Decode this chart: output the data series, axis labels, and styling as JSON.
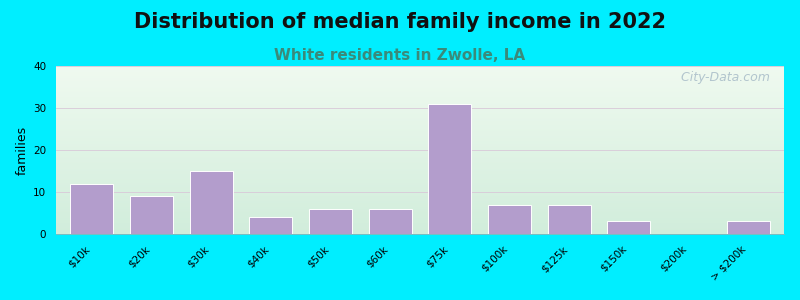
{
  "title": "Distribution of median family income in 2022",
  "subtitle": "White residents in Zwolle, LA",
  "ylabel": "families",
  "categories": [
    "$10k",
    "$20k",
    "$30k",
    "$40k",
    "$50k",
    "$60k",
    "$75k",
    "$100k",
    "$125k",
    "$150k",
    "$200k",
    "> $200k"
  ],
  "values": [
    12,
    9,
    15,
    4,
    6,
    6,
    31,
    7,
    7,
    3,
    0,
    3
  ],
  "bar_color": "#b39dcc",
  "bar_edgecolor": "#ffffff",
  "ylim": [
    0,
    40
  ],
  "yticks": [
    0,
    10,
    20,
    30,
    40
  ],
  "background_outer": "#00eeff",
  "bg_top_left": "#d8eed8",
  "bg_top_right": "#f0f8f0",
  "bg_bottom_left": "#e8f5e8",
  "bg_bottom_right": "#ffffff",
  "grid_color": "#d8c8d8",
  "grid_linewidth": 0.6,
  "title_fontsize": 15,
  "subtitle_fontsize": 11,
  "subtitle_color": "#3a8a7a",
  "ylabel_fontsize": 9,
  "tick_fontsize": 7.5,
  "watermark_text": "  City-Data.com",
  "watermark_color": "#a8bcc8",
  "watermark_fontsize": 9
}
